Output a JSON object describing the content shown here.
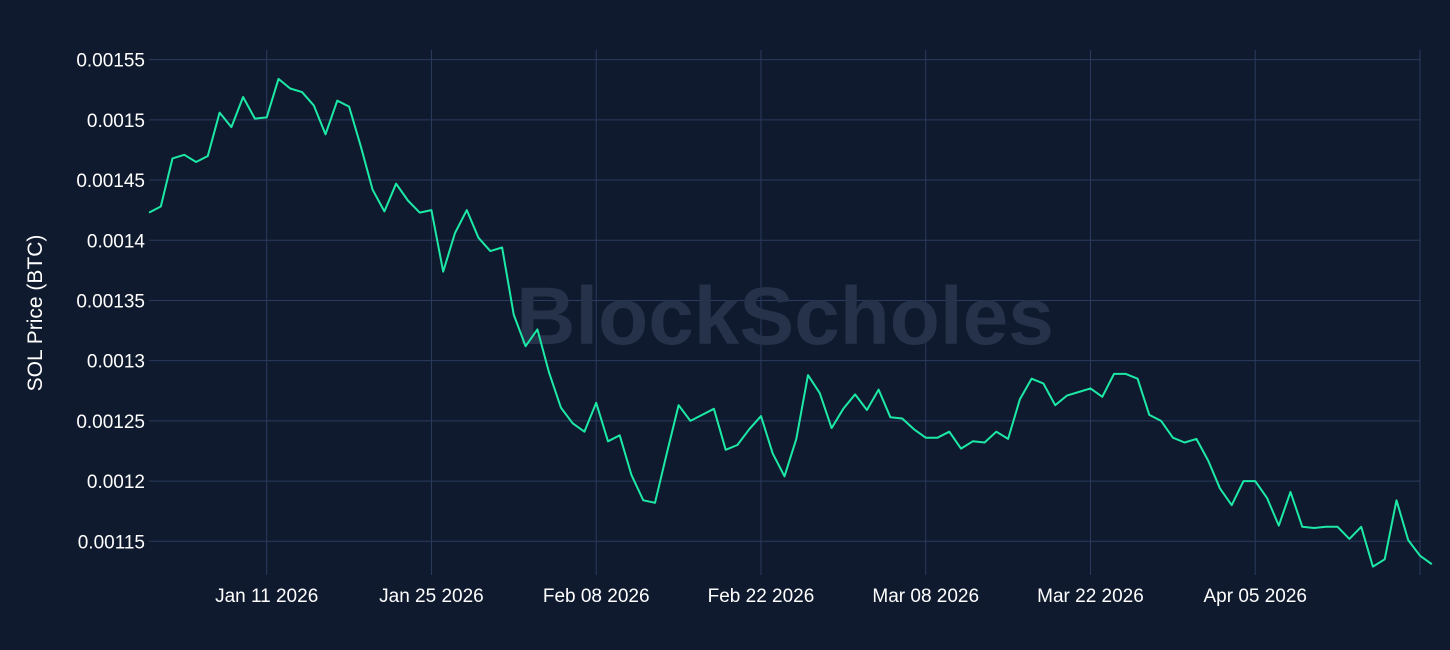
{
  "watermark": "BlockScholes",
  "colors": {
    "background": "#0f1a2e",
    "grid": "#2b3a5e",
    "line": "#1de9a6",
    "text": "#ffffff"
  },
  "chart_data": {
    "type": "line",
    "title": "",
    "xlabel": "",
    "ylabel": "SOL Price (BTC)",
    "grid": true,
    "legend": "none",
    "x_range": [
      "2026-01-01",
      "2026-04-19"
    ],
    "ylim": [
      0.001122,
      0.001558
    ],
    "x_ticks": [
      {
        "date": "2026-01-11",
        "label": "Jan 11 2026"
      },
      {
        "date": "2026-01-25",
        "label": "Jan 25 2026"
      },
      {
        "date": "2026-02-08",
        "label": "Feb 08 2026"
      },
      {
        "date": "2026-02-22",
        "label": "Feb 22 2026"
      },
      {
        "date": "2026-03-08",
        "label": "Mar 08 2026"
      },
      {
        "date": "2026-03-22",
        "label": "Mar 22 2026"
      },
      {
        "date": "2026-04-05",
        "label": "Apr 05 2026"
      },
      {
        "date": "2026-04-19",
        "label": ""
      }
    ],
    "y_ticks": [
      {
        "value": 0.00115,
        "label": "0.00115"
      },
      {
        "value": 0.0012,
        "label": "0.0012"
      },
      {
        "value": 0.00125,
        "label": "0.00125"
      },
      {
        "value": 0.0013,
        "label": "0.0013"
      },
      {
        "value": 0.00135,
        "label": "0.00135"
      },
      {
        "value": 0.0014,
        "label": "0.0014"
      },
      {
        "value": 0.00145,
        "label": "0.00145"
      },
      {
        "value": 0.0015,
        "label": "0.0015"
      },
      {
        "value": 0.00155,
        "label": "0.00155"
      }
    ],
    "series": [
      {
        "color": "#1de9a6",
        "x": [
          "2026-01-01",
          "2026-01-02",
          "2026-01-03",
          "2026-01-04",
          "2026-01-05",
          "2026-01-06",
          "2026-01-07",
          "2026-01-08",
          "2026-01-09",
          "2026-01-10",
          "2026-01-11",
          "2026-01-12",
          "2026-01-13",
          "2026-01-14",
          "2026-01-15",
          "2026-01-16",
          "2026-01-17",
          "2026-01-18",
          "2026-01-19",
          "2026-01-20",
          "2026-01-21",
          "2026-01-22",
          "2026-01-23",
          "2026-01-24",
          "2026-01-25",
          "2026-01-26",
          "2026-01-27",
          "2026-01-28",
          "2026-01-29",
          "2026-01-30",
          "2026-01-31",
          "2026-02-01",
          "2026-02-02",
          "2026-02-03",
          "2026-02-04",
          "2026-02-05",
          "2026-02-06",
          "2026-02-07",
          "2026-02-08",
          "2026-02-09",
          "2026-02-10",
          "2026-02-11",
          "2026-02-12",
          "2026-02-13",
          "2026-02-14",
          "2026-02-15",
          "2026-02-16",
          "2026-02-17",
          "2026-02-18",
          "2026-02-19",
          "2026-02-20",
          "2026-02-21",
          "2026-02-22",
          "2026-02-23",
          "2026-02-24",
          "2026-02-25",
          "2026-02-26",
          "2026-02-27",
          "2026-02-28",
          "2026-03-01",
          "2026-03-02",
          "2026-03-03",
          "2026-03-04",
          "2026-03-05",
          "2026-03-06",
          "2026-03-07",
          "2026-03-08",
          "2026-03-09",
          "2026-03-10",
          "2026-03-11",
          "2026-03-12",
          "2026-03-13",
          "2026-03-14",
          "2026-03-15",
          "2026-03-16",
          "2026-03-17",
          "2026-03-18",
          "2026-03-19",
          "2026-03-20",
          "2026-03-21",
          "2026-03-22",
          "2026-03-23",
          "2026-03-24",
          "2026-03-25",
          "2026-03-26",
          "2026-03-27",
          "2026-03-28",
          "2026-03-29",
          "2026-03-30",
          "2026-03-31",
          "2026-04-01",
          "2026-04-02",
          "2026-04-03",
          "2026-04-04",
          "2026-04-05",
          "2026-04-06",
          "2026-04-07",
          "2026-04-08",
          "2026-04-09",
          "2026-04-10",
          "2026-04-11",
          "2026-04-12",
          "2026-04-13",
          "2026-04-14",
          "2026-04-15",
          "2026-04-16",
          "2026-04-17",
          "2026-04-18",
          "2026-04-19",
          "2026-04-20"
        ],
        "y": [
          0.001423,
          0.001428,
          0.001468,
          0.001471,
          0.001465,
          0.00147,
          0.001506,
          0.001494,
          0.001519,
          0.001501,
          0.001502,
          0.001534,
          0.001526,
          0.001523,
          0.001512,
          0.001488,
          0.001516,
          0.001511,
          0.001478,
          0.001442,
          0.001424,
          0.001447,
          0.001433,
          0.001423,
          0.001425,
          0.001374,
          0.001406,
          0.001425,
          0.001402,
          0.001391,
          0.001394,
          0.001338,
          0.001312,
          0.001326,
          0.00129,
          0.001261,
          0.001248,
          0.001241,
          0.001265,
          0.001233,
          0.001238,
          0.001205,
          0.001184,
          0.001182,
          0.001223,
          0.001263,
          0.00125,
          0.001255,
          0.00126,
          0.001226,
          0.00123,
          0.001243,
          0.001254,
          0.001223,
          0.001204,
          0.001235,
          0.001288,
          0.001273,
          0.001244,
          0.00126,
          0.001272,
          0.001259,
          0.001276,
          0.001253,
          0.001252,
          0.001243,
          0.001236,
          0.001236,
          0.001241,
          0.001227,
          0.001233,
          0.001232,
          0.001241,
          0.001235,
          0.001268,
          0.001285,
          0.001281,
          0.001263,
          0.001271,
          0.001274,
          0.001277,
          0.00127,
          0.001289,
          0.001289,
          0.001285,
          0.001255,
          0.00125,
          0.001236,
          0.001232,
          0.001235,
          0.001217,
          0.001194,
          0.00118,
          0.0012,
          0.0012,
          0.001186,
          0.001163,
          0.001191,
          0.001162,
          0.001161,
          0.001162,
          0.001162,
          0.001152,
          0.001162,
          0.001129,
          0.001135,
          0.001184,
          0.001151,
          0.001138,
          0.001131
        ]
      }
    ]
  }
}
